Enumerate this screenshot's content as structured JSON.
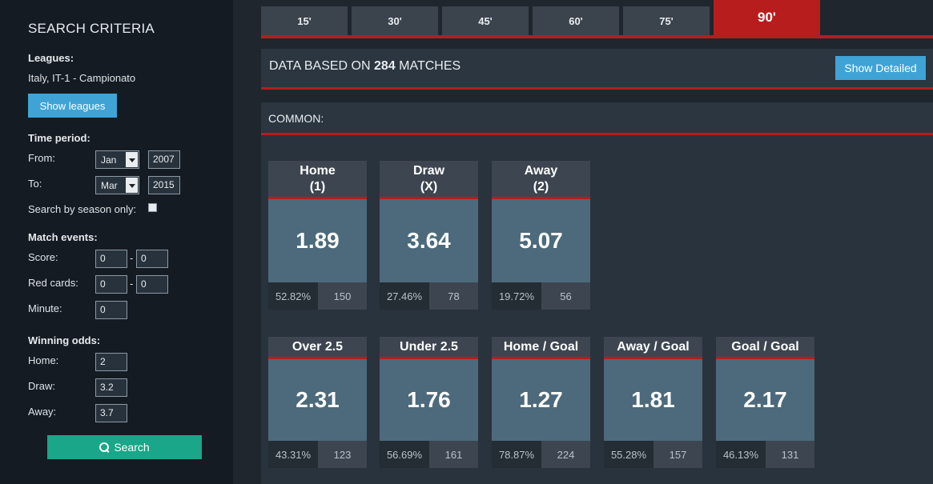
{
  "sidebar": {
    "title": "SEARCH CRITERIA",
    "leagues_label": "Leagues:",
    "leagues_value": "Italy, IT-1 - Campionato",
    "show_leagues": "Show leagues",
    "time_period_label": "Time period:",
    "from_label": "From:",
    "from_month": "Jan",
    "from_year": "2007",
    "to_label": "To:",
    "to_month": "Mar",
    "to_year": "2015",
    "season_only_label": "Search by season only:",
    "match_events_label": "Match events:",
    "score_label": "Score:",
    "score_home": "0",
    "score_away": "0",
    "dash": "-",
    "red_cards_label": "Red cards:",
    "red_home": "0",
    "red_away": "0",
    "minute_label": "Minute:",
    "minute_value": "0",
    "winning_odds_label": "Winning odds:",
    "home_label": "Home:",
    "home_value": "2",
    "draw_label": "Draw:",
    "draw_value": "3.2",
    "away_label": "Away:",
    "away_value": "3.7",
    "search_button": "Search"
  },
  "tabs": [
    "15'",
    "30'",
    "45'",
    "60'",
    "75'",
    "90'"
  ],
  "active_tab": "90'",
  "header": {
    "data_prefix": "DATA BASED ON ",
    "match_count": "284",
    "data_suffix": " MATCHES",
    "show_detailed": "Show Detailed",
    "common_label": "COMMON:"
  },
  "cards_row1": [
    {
      "label": "Home\n(1)",
      "odds": "1.89",
      "pct": "52.82%",
      "count": "150"
    },
    {
      "label": "Draw\n(X)",
      "odds": "3.64",
      "pct": "27.46%",
      "count": "78"
    },
    {
      "label": "Away\n(2)",
      "odds": "5.07",
      "pct": "19.72%",
      "count": "56"
    }
  ],
  "cards_row2": [
    {
      "label": "Over 2.5",
      "odds": "2.31",
      "pct": "43.31%",
      "count": "123"
    },
    {
      "label": "Under 2.5",
      "odds": "1.76",
      "pct": "56.69%",
      "count": "161"
    },
    {
      "label": "Home / Goal",
      "odds": "1.27",
      "pct": "78.87%",
      "count": "224"
    },
    {
      "label": "Away / Goal",
      "odds": "1.81",
      "pct": "55.28%",
      "count": "157"
    },
    {
      "label": "Goal / Goal",
      "odds": "2.17",
      "pct": "46.13%",
      "count": "131"
    }
  ],
  "colors": {
    "accent_red": "#b71d1d",
    "button_blue": "#3fa3d5",
    "button_green": "#1aa688",
    "card_value_bg": "#4c6a7b"
  }
}
